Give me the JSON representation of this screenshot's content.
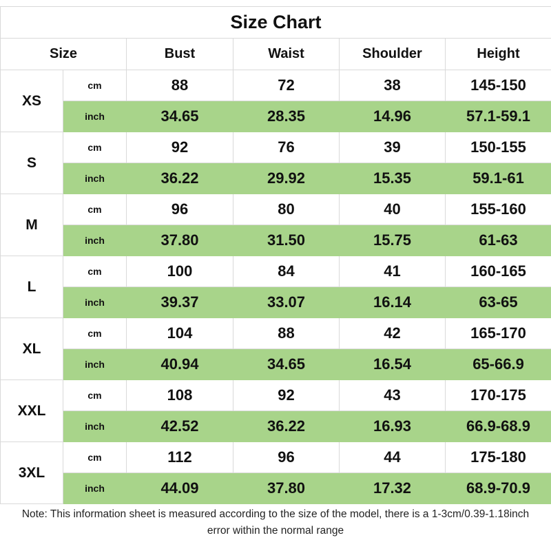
{
  "title": "Size Chart",
  "headers": {
    "size": "Size",
    "bust": "Bust",
    "waist": "Waist",
    "shoulder": "Shoulder",
    "height": "Height"
  },
  "units": {
    "cm": "cm",
    "inch": "inch"
  },
  "rows": [
    {
      "size": "XS",
      "cm": [
        "88",
        "72",
        "38",
        "145-150"
      ],
      "inch": [
        "34.65",
        "28.35",
        "14.96",
        "57.1-59.1"
      ]
    },
    {
      "size": "S",
      "cm": [
        "92",
        "76",
        "39",
        "150-155"
      ],
      "inch": [
        "36.22",
        "29.92",
        "15.35",
        "59.1-61"
      ]
    },
    {
      "size": "M",
      "cm": [
        "96",
        "80",
        "40",
        "155-160"
      ],
      "inch": [
        "37.80",
        "31.50",
        "15.75",
        "61-63"
      ]
    },
    {
      "size": "L",
      "cm": [
        "100",
        "84",
        "41",
        "160-165"
      ],
      "inch": [
        "39.37",
        "33.07",
        "16.14",
        "63-65"
      ]
    },
    {
      "size": "XL",
      "cm": [
        "104",
        "88",
        "42",
        "165-170"
      ],
      "inch": [
        "40.94",
        "34.65",
        "16.54",
        "65-66.9"
      ]
    },
    {
      "size": "XXL",
      "cm": [
        "108",
        "92",
        "43",
        "170-175"
      ],
      "inch": [
        "42.52",
        "36.22",
        "16.93",
        "66.9-68.9"
      ]
    },
    {
      "size": "3XL",
      "cm": [
        "112",
        "96",
        "44",
        "175-180"
      ],
      "inch": [
        "44.09",
        "37.80",
        "17.32",
        "68.9-70.9"
      ]
    }
  ],
  "note": "Note: This information sheet is measured according to the size of the model, there is a 1-3cm/0.39-1.18inch error within the normal range",
  "colors": {
    "inch_row_background": "#a8d48a",
    "grid_line": "#d9d9d9"
  }
}
